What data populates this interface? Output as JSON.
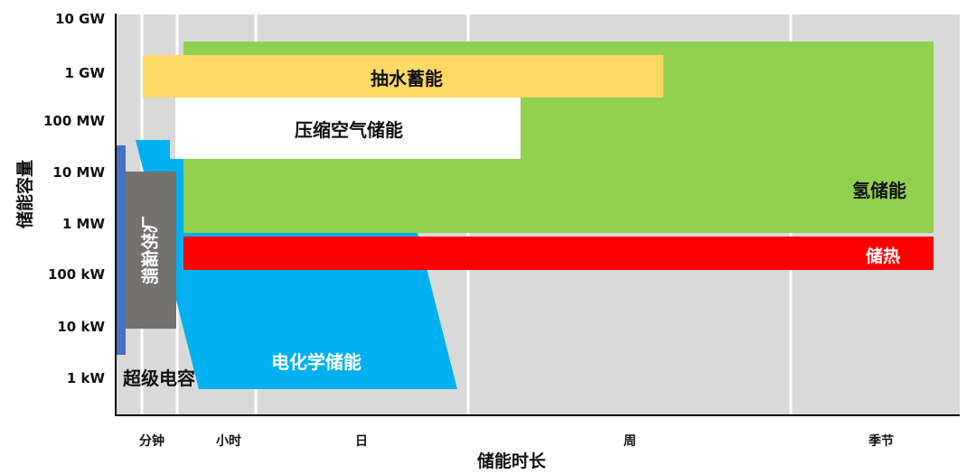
{
  "colors": {
    "background": "#d9d9d9",
    "hydrogen": "#92d050",
    "pumped_hydro": "#ffd966",
    "compressed_air": "#ffffff",
    "electrochemical": "#00b0f0",
    "thermal": "#ff0000",
    "supercapacitor": "#4472c4",
    "flywheel": "#767171"
  },
  "y_axis": {
    "title": "储能容量",
    "ticks": [
      "10 GW",
      "1 GW",
      "100 MW",
      "10 MW",
      "1 MW",
      "100 kW",
      "10 kW",
      "1 kW"
    ]
  },
  "x_axis": {
    "title": "储能时长",
    "ticks": [
      "分钟",
      "小时",
      "日",
      "周",
      "季节"
    ]
  },
  "technologies": {
    "pumped_hydro": "抽水蓄能",
    "compressed_air": "压缩空气储能",
    "hydrogen": "氢储能",
    "thermal": "储热",
    "electrochemical": "电化学储能",
    "supercapacitor": "超级电容",
    "flywheel": "飞轮储能"
  }
}
